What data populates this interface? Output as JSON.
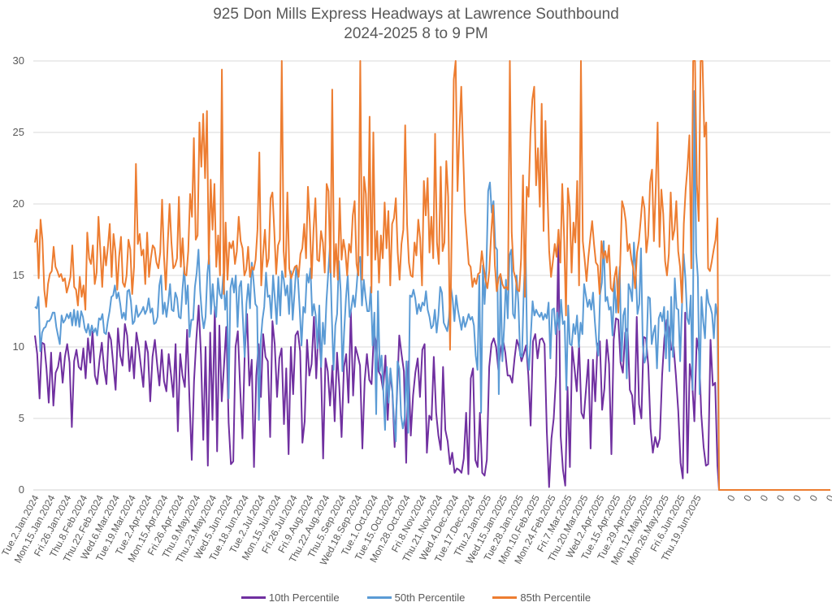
{
  "chart_data": {
    "type": "line",
    "title": "925 Don Mills Express Headways at Lawrence Southbound",
    "subtitle": "2024-2025 8 to 9 PM",
    "xlabel": "",
    "ylabel": "",
    "ylim": [
      0,
      30
    ],
    "yticks": [
      0,
      5,
      10,
      15,
      20,
      25,
      30
    ],
    "grid": true,
    "legend_position": "bottom",
    "x_tick_labels": [
      "Tue.2.Jan.2024",
      "Mon.15.Jan.2024",
      "Fri.26.Jan.2024",
      "Thu.8.Feb.2024",
      "Thu.22.Feb.2024",
      "Wed.6.Mar.2024",
      "Tue.19.Mar.2024",
      "Tue.2.Apr.2024",
      "Mon.15.Apr.2024",
      "Fri.26.Apr.2024",
      "Thu.9.May.2024",
      "Thu.23.May.2024",
      "Wed.5.Jun.2024",
      "Tue.18.Jun.2024",
      "Tue.2.Jul.2024",
      "Mon.15.Jul.2024",
      "Fri.26.Jul.2024",
      "Fri.9.Aug.2024",
      "Thu.22.Aug.2024",
      "Thu.5.Sep.2024",
      "Wed.18.Sep.2024",
      "Tue.1.Oct.2024",
      "Tue.15.Oct.2024",
      "Mon.28.Oct.2024",
      "Fri.8.Nov.2024",
      "Thu.21.Nov.2024",
      "Wed.4.Dec.2024",
      "Tue.17.Dec.2024",
      "Thu.2.Jan.2025",
      "Wed.15.Jan.2025",
      "Tue.28.Jan.2025",
      "Mon.10.Feb.2025",
      "Mon.24.Feb.2025",
      "Fri.7.Mar.2025",
      "Thu.20.Mar.2025",
      "Wed.2.Apr.2025",
      "Tue.15.Apr.2025",
      "Tue.29.Apr.2025",
      "Mon.12.May.2025",
      "Mon.26.May.2025",
      "Fri.6.Jun.2025",
      "Thu.19.Jun.2025",
      "0",
      "0",
      "0",
      "0",
      "0",
      "0",
      "0"
    ],
    "series": [
      {
        "name": "10th Percentile",
        "color": "#7030A0",
        "values": [
          10.8,
          9.5,
          6.4,
          10.3,
          10.2,
          8.5,
          6.1,
          9.6,
          5.9,
          8.2,
          8.6,
          9.6,
          7.5,
          9.3,
          10.2,
          8.9,
          4.4,
          9.0,
          9.8,
          8.6,
          8.4,
          9.9,
          7.8,
          10.6,
          8.9,
          11.1,
          8.0,
          7.4,
          9.1,
          10.3,
          8.5,
          7.4,
          11.0,
          10.5,
          8.7,
          7.0,
          11.3,
          9.4,
          8.7,
          11.6,
          10.8,
          8.3,
          10.0,
          7.8,
          11.0,
          10.0,
          8.6,
          7.2,
          10.4,
          9.6,
          6.2,
          9.3,
          10.5,
          8.8,
          7.3,
          9.8,
          7.6,
          6.9,
          9.5,
          8.1,
          6.5,
          10.2,
          4.1,
          9.5,
          8.0,
          7.2,
          11.2,
          6.5,
          2.1,
          7.6,
          10.5,
          12.9,
          9.5,
          3.5,
          10.0,
          1.7,
          11.0,
          4.9,
          12.8,
          2.7,
          11.5,
          6.2,
          8.7,
          11.4,
          4.7,
          1.8,
          2.0,
          10.0,
          11.1,
          7.1,
          3.6,
          9.5,
          12.3,
          7.3,
          9.1,
          1.6,
          8.0,
          10.2,
          6.5,
          10.9,
          9.3,
          9.0,
          3.7,
          11.8,
          10.2,
          6.5,
          9.2,
          9.9,
          4.6,
          8.5,
          2.5,
          10.0,
          6.7,
          10.8,
          11.1,
          9.7,
          3.3,
          4.8,
          10.5,
          8.0,
          8.8,
          12.1,
          7.8,
          11.5,
          9.0,
          2.2,
          9.2,
          8.3,
          5.9,
          8.7,
          4.8,
          9.6,
          7.2,
          3.7,
          8.6,
          9.5,
          6.1,
          12.5,
          6.6,
          10.0,
          9.4,
          8.7,
          2.9,
          7.6,
          9.5,
          7.7,
          7.4,
          11.0,
          10.3,
          8.3,
          8.0,
          7.0,
          9.4,
          4.9,
          8.1,
          6.9,
          3.0,
          6.5,
          10.8,
          9.5,
          8.3,
          1.9,
          9.0,
          3.8,
          6.6,
          8.2,
          9.2,
          6.5,
          9.8,
          10.2,
          2.6,
          5.2,
          4.9,
          9.3,
          5.4,
          3.8,
          2.8,
          8.6,
          4.2,
          3.4,
          1.8,
          2.6,
          1.2,
          1.5,
          1.4,
          1.2,
          2.2,
          5.4,
          1.1,
          7.8,
          8.5,
          2.1,
          1.6,
          5.4,
          1.2,
          1.0,
          2.1,
          8.6,
          10.2,
          10.6,
          10.0,
          8.4,
          9.8,
          10.5,
          9.6,
          8.0,
          8.0,
          7.5,
          9.2,
          10.5,
          10.0,
          9.0,
          9.5,
          10.1,
          8.0,
          4.5,
          10.4,
          10.9,
          9.2,
          10.5,
          10.6,
          10.2,
          4.1,
          0.2,
          3.6,
          5.0,
          8.0,
          17.4,
          3.8,
          1.4,
          0.3,
          7.2,
          1.6,
          10.0,
          8.5,
          6.9,
          10.2,
          5.4,
          5.0,
          7.0,
          9.1,
          2.9,
          9.1,
          6.2,
          10.2,
          10.4,
          5.6,
          7.1,
          10.5,
          8.8,
          2.5,
          10.5,
          12.0,
          11.9,
          8.9,
          8.2,
          11.0,
          11.3,
          7.0,
          6.6,
          4.6,
          12.1,
          6.0,
          5.0,
          10.7,
          10.6,
          8.7,
          4.3,
          2.6,
          3.7,
          3.0,
          3.6,
          8.0,
          10.6,
          11.9,
          11.3,
          9.8,
          10.0,
          8.0,
          5.5,
          1.9,
          0.8,
          12.4,
          1.2,
          8.8,
          7.6,
          4.8,
          10.6,
          9.7,
          5.3,
          3.0,
          1.7,
          1.8,
          10.5,
          7.3,
          7.5,
          1.7,
          0
        ]
      },
      {
        "name": "50th Percentile",
        "color": "#5B9BD5",
        "values": [
          12.8,
          12.7,
          13.5,
          9.7,
          11.0,
          11.3,
          11.4,
          11.8,
          11.8,
          12.0,
          12.4,
          12.4,
          11.4,
          10.8,
          10.2,
          12.2,
          11.7,
          11.9,
          12.3,
          12.0,
          12.4,
          11.5,
          12.6,
          11.5,
          12.5,
          11.4,
          12.5,
          12.1,
          11.3,
          11.0,
          11.6,
          10.8,
          11.5,
          11.0,
          11.3,
          10.8,
          12.0,
          11.9,
          12.3,
          11.0,
          10.9,
          11.8,
          12.5,
          13.5,
          13.6,
          14.3,
          13.4,
          13.8,
          13.0,
          12.0,
          12.4,
          11.9,
          13.9,
          14.0,
          13.2,
          11.6,
          11.8,
          12.9,
          12.1,
          12.3,
          12.5,
          12.8,
          12.3,
          12.6,
          13.4,
          12.4,
          12.7,
          11.6,
          11.7,
          12.1,
          14.3,
          15.0,
          12.3,
          13.1,
          12.1,
          13.1,
          14.4,
          12.6,
          12.5,
          13.8,
          13.4,
          12.1,
          12.0,
          14.0,
          15.6,
          13.0,
          14.3,
          10.7,
          11.9,
          11.9,
          14.2,
          15.2,
          16.8,
          13.9,
          12.2,
          11.3,
          12.1,
          15.1,
          16.4,
          12.3,
          14.4,
          12.9,
          12.1,
          14.8,
          13.7,
          13.4,
          15.1,
          12.6,
          13.9,
          6.4,
          14.1,
          14.8,
          13.8,
          15.0,
          11.4,
          14.2,
          14.6,
          12.0,
          9.3,
          13.0,
          14.4,
          12.7,
          15.9,
          14.6,
          13.0,
          12.8,
          4.9,
          10.3,
          11.9,
          12.8,
          15.2,
          13.5,
          13.6,
          12.0,
          15.0,
          13.4,
          11.6,
          14.9,
          12.2,
          15.3,
          14.7,
          13.6,
          14.3,
          12.3,
          15.3,
          11.9,
          13.7,
          15.6,
          14.7,
          12.6,
          10.1,
          12.8,
          12.4,
          15.1,
          14.5,
          15.5,
          12.2,
          13.0,
          12.2,
          9.9,
          12.9,
          8.6,
          11.7,
          10.2,
          13.2,
          15.1,
          17.1,
          12.3,
          8.4,
          11.5,
          12.3,
          16.0,
          13.9,
          8.3,
          11.1,
          13.4,
          15.0,
          12.1,
          12.7,
          13.6,
          12.8,
          14.2,
          15.9,
          16.3,
          12.9,
          14.7,
          13.5,
          12.5,
          12.5,
          14.2,
          10.1,
          12.4,
          5.3,
          13.9,
          8.3,
          9.4,
          6.9,
          4.2,
          8.6,
          6.1,
          8.5,
          7.2,
          4.9,
          3.4,
          9.0,
          8.5,
          5.2,
          4.3,
          5.0,
          9.0,
          4.0,
          13.6,
          13.5,
          14.0,
          13.4,
          12.3,
          13.0,
          12.5,
          13.1,
          12.9,
          13.9,
          12.6,
          12.1,
          11.3,
          11.5,
          12.6,
          11.0,
          12.2,
          14.2,
          13.8,
          11.7,
          11.4,
          11.1,
          12.1,
          14.2,
          13.3,
          11.8,
          13.6,
          12.6,
          11.9,
          11.2,
          12.1,
          11.4,
          11.8,
          12.3,
          11.9,
          12.1,
          11.5,
          9.4,
          8.4,
          15.0,
          5.4,
          15.7,
          13.0,
          15.4,
          20.9,
          21.5,
          19.4,
          20.2,
          17.0,
          16.8,
          6.7,
          15.0,
          9.0,
          11.4,
          14.7,
          12.0,
          16.4,
          16.8,
          12.3,
          12.0,
          15.0,
          13.1,
          9.4,
          9.3,
          13.8,
          17.1,
          9.6,
          8.4,
          10.8,
          13.2,
          12.2,
          12.6,
          12.3,
          12.1,
          12.4,
          11.9,
          12.3,
          12.0,
          13.1,
          9.2,
          12.6,
          12.7,
          10.9,
          12.4,
          11.2,
          13.3,
          11.6,
          11.8,
          7.0,
          12.9,
          10.2,
          10.1,
          11.6,
          10.9,
          12.2,
          10.0,
          11.7,
          10.9,
          14.4,
          13.6,
          12.8,
          13.3,
          12.6,
          13.8,
          11.8,
          10.2,
          9.4,
          13.7,
          14.5,
          17.4,
          13.2,
          13.5,
          12.6,
          12.8,
          10.8,
          14.8,
          12.4,
          14.0,
          15.6,
          9.0,
          12.2,
          12.7,
          7.8,
          14.4,
          14.0,
          13.2,
          17.3,
          15.3,
          12.3,
          13.0,
          16.9,
          10.2,
          8.9,
          9.4,
          13.5,
          13.4,
          10.2,
          11.0,
          11.5,
          8.5,
          12.0,
          12.4,
          11.8,
          12.8,
          9.2,
          12.5,
          8.3,
          13.5,
          9.3,
          14.8,
          12.7,
          12.6,
          9.0,
          12.7,
          16.5,
          14.8,
          12.0,
          11.6,
          13.6,
          7.0,
          27.9,
          16.6,
          14.9,
          6.7,
          13.5,
          11.8,
          10.6,
          14.0,
          13.1,
          12.8,
          12.3,
          10.6,
          13.0,
          12.1,
          0
        ]
      },
      {
        "name": "85th Percentile",
        "color": "#ED7D31",
        "values": [
          17.3,
          18.2,
          14.8,
          18.9,
          17.5,
          14.0,
          12.8,
          14.4,
          15.1,
          15.3,
          17.0,
          15.6,
          15.3,
          14.9,
          15.1,
          14.6,
          14.8,
          13.8,
          14.3,
          14.9,
          17.1,
          14.2,
          14.0,
          12.9,
          14.9,
          13.5,
          14.3,
          12.6,
          18.0,
          16.2,
          15.8,
          17.1,
          14.4,
          15.2,
          19.1,
          16.7,
          14.2,
          17.0,
          15.7,
          17.0,
          18.6,
          14.9,
          17.9,
          16.7,
          14.0,
          16.3,
          17.7,
          14.5,
          14.2,
          15.0,
          17.5,
          16.8,
          13.7,
          15.6,
          22.8,
          17.2,
          17.9,
          16.4,
          16.8,
          14.4,
          18.0,
          14.9,
          16.2,
          17.1,
          16.9,
          15.9,
          15.5,
          16.6,
          20.3,
          16.4,
          14.0,
          17.2,
          20.0,
          17.3,
          15.5,
          15.7,
          16.2,
          20.5,
          15.6,
          17.6,
          15.1,
          15.0,
          16.7,
          20.7,
          19.1,
          24.6,
          17.5,
          17.8,
          25.7,
          22.6,
          26.3,
          21.8,
          26.5,
          15.8,
          21.7,
          18.2,
          21.4,
          15.6,
          17.8,
          15.0,
          29.4,
          13.7,
          18.7,
          14.7,
          17.3,
          16.9,
          17.4,
          15.8,
          16.7,
          19.1,
          17.4,
          16.9,
          15.0,
          15.4,
          17.0,
          14.9,
          15.6,
          15.4,
          16.1,
          18.2,
          23.6,
          14.3,
          16.5,
          18.2,
          15.6,
          16.2,
          20.4,
          20.8,
          18.1,
          15.1,
          17.1,
          17.5,
          30.0,
          16.7,
          14.9,
          20.8,
          15.5,
          14.8,
          15.2,
          15.6,
          15.7,
          14.9,
          16.5,
          16.9,
          18.6,
          16.2,
          21.2,
          18.7,
          14.8,
          18.2,
          20.4,
          16.1,
          16.0,
          18.1,
          17.3,
          15.2,
          21.4,
          20.9,
          15.2,
          28.0,
          14.9,
          17.2,
          14.7,
          20.4,
          16.1,
          17.5,
          16.7,
          15.0,
          17.2,
          16.6,
          19.2,
          20.2,
          15.8,
          15.0,
          30.0,
          14.7,
          21.9,
          20.7,
          16.4,
          26.1,
          13.8,
          25.0,
          16.1,
          18.1,
          14.5,
          17.8,
          16.2,
          20.1,
          16.9,
          19.5,
          14.3,
          18.6,
          19.0,
          20.4,
          16.6,
          14.7,
          17.2,
          18.2,
          25.5,
          18.6,
          15.9,
          15.0,
          14.9,
          17.3,
          16.4,
          18.9,
          17.6,
          14.3,
          21.6,
          19.2,
          21.8,
          16.6,
          19.1,
          16.2,
          24.9,
          17.3,
          15.8,
          22.6,
          16.7,
          17.3,
          23.0,
          20.5,
          9.8,
          19.2,
          28.7,
          30.0,
          20.9,
          25.0,
          28.2,
          23.6,
          19.4,
          17.6,
          15.8,
          15.6,
          14.2,
          14.8,
          14.4,
          15.1,
          15.2,
          16.7,
          15.6,
          14.7,
          14.1,
          15.3,
          17.9,
          19.9,
          15.7,
          13.9,
          14.8,
          15.1,
          14.4,
          14.1,
          14.2,
          14.0,
          30.0,
          18.0,
          15.3,
          14.8,
          14.0,
          13.9,
          16.2,
          22.0,
          13.5,
          21.2,
          20.5,
          25.0,
          27.3,
          28.2,
          21.3,
          23.9,
          19.8,
          27.0,
          18.1,
          25.8,
          21.2,
          16.7,
          14.9,
          16.0,
          17.2,
          16.3,
          18.2,
          15.9,
          21.4,
          17.7,
          12.2,
          21.1,
          19.8,
          15.2,
          18.7,
          17.3,
          21.6,
          14.3,
          30.0,
          17.4,
          16.1,
          14.6,
          16.3,
          17.6,
          18.8,
          17.2,
          15.9,
          15.7,
          13.7,
          17.4,
          16.2,
          16.7,
          15.9,
          17.1,
          14.1,
          13.9,
          14.9,
          15.6,
          12.4,
          15.8,
          20.2,
          19.7,
          18.8,
          16.7,
          17.2,
          16.1,
          15.5,
          14.1,
          16.6,
          17.4,
          18.9,
          20.5,
          19.7,
          16.6,
          17.8,
          21.5,
          22.4,
          17.4,
          21.1,
          25.7,
          17.0,
          21.0,
          19.3,
          16.0,
          15.0,
          16.5,
          20.8,
          17.5,
          18.2,
          20.2,
          16.7,
          15.6,
          13.1,
          18.6,
          21.0,
          22.6,
          24.8,
          15.5,
          30.0,
          30.0,
          21.4,
          18.8,
          30.0,
          30.0,
          24.7,
          25.7,
          15.5,
          15.3,
          16.0,
          16.8,
          17.5,
          19.0,
          0
        ]
      }
    ],
    "trailing_zero_categories": 7
  },
  "legend": [
    {
      "label": "10th Percentile",
      "color": "#7030A0"
    },
    {
      "label": "50th Percentile",
      "color": "#5B9BD5"
    },
    {
      "label": "85th Percentile",
      "color": "#ED7D31"
    }
  ]
}
